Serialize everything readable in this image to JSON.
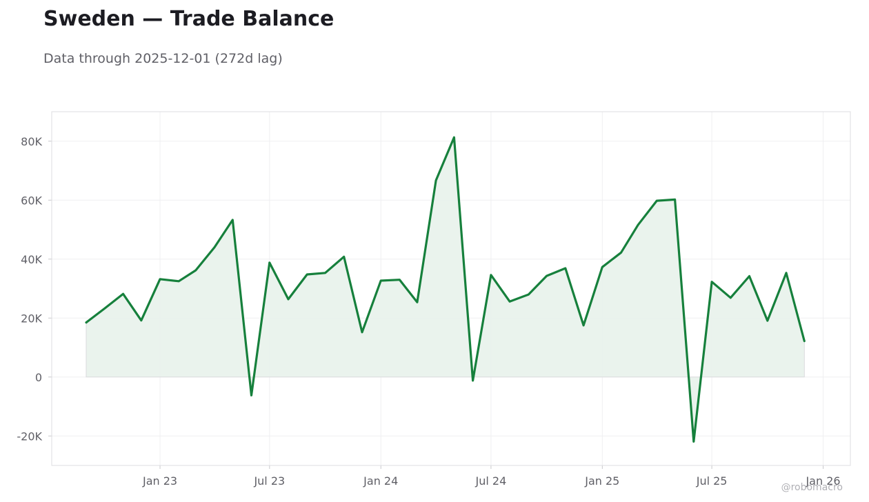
{
  "header": {
    "title": "Sweden — Trade Balance",
    "subtitle": "Data through 2025-12-01 (272d lag)"
  },
  "watermark": "@robomacro",
  "colors": {
    "line": "#16803c",
    "fill": "#e9f3ed",
    "grid": "#efeff1",
    "frame": "#dddde0",
    "zero": "#d9d9dc"
  },
  "chart_data": {
    "type": "area",
    "title": "Sweden — Trade Balance",
    "xlabel": "",
    "ylabel": "",
    "ylim": [
      -30000,
      90000
    ],
    "xlim": [
      "2022-07-06",
      "2026-02-15"
    ],
    "grid": true,
    "y_ticks": [
      {
        "value": -20000,
        "label": "-20K"
      },
      {
        "value": 0,
        "label": "0"
      },
      {
        "value": 20000,
        "label": "20K"
      },
      {
        "value": 40000,
        "label": "40K"
      },
      {
        "value": 60000,
        "label": "60K"
      },
      {
        "value": 80000,
        "label": "80K"
      }
    ],
    "x_ticks": [
      {
        "date": "2023-01-01",
        "label": "Jan 23"
      },
      {
        "date": "2023-07-01",
        "label": "Jul 23"
      },
      {
        "date": "2024-01-01",
        "label": "Jan 24"
      },
      {
        "date": "2024-07-01",
        "label": "Jul 24"
      },
      {
        "date": "2025-01-01",
        "label": "Jan 25"
      },
      {
        "date": "2025-07-01",
        "label": "Jul 25"
      },
      {
        "date": "2026-01-01",
        "label": "Jan 26"
      }
    ],
    "series": [
      {
        "x": [
          "2022-09-01",
          "2022-10-01",
          "2022-11-01",
          "2022-12-01",
          "2023-01-01",
          "2023-02-01",
          "2023-03-01",
          "2023-04-01",
          "2023-05-01",
          "2023-06-01",
          "2023-07-01",
          "2023-08-01",
          "2023-09-01",
          "2023-10-01",
          "2023-11-01",
          "2023-12-01",
          "2024-01-01",
          "2024-02-01",
          "2024-03-01",
          "2024-04-01",
          "2024-05-01",
          "2024-06-01",
          "2024-07-01",
          "2024-08-01",
          "2024-09-01",
          "2024-10-01",
          "2024-11-01",
          "2024-12-01",
          "2025-01-01",
          "2025-02-01",
          "2025-03-01",
          "2025-04-01",
          "2025-05-01",
          "2025-06-01",
          "2025-07-01",
          "2025-08-01",
          "2025-09-01",
          "2025-10-01",
          "2025-11-01",
          "2025-12-01"
        ],
        "values": [
          18500,
          23200,
          28200,
          19200,
          33200,
          32500,
          36200,
          44000,
          53300,
          -6200,
          38800,
          26400,
          34800,
          35300,
          40800,
          15200,
          32700,
          33000,
          25400,
          66700,
          81300,
          -1200,
          34600,
          25600,
          28000,
          34300,
          36900,
          17500,
          37300,
          42200,
          51600,
          59800,
          60200,
          -21900,
          32300,
          26900,
          34200,
          19100,
          35300,
          12200
        ]
      }
    ]
  }
}
